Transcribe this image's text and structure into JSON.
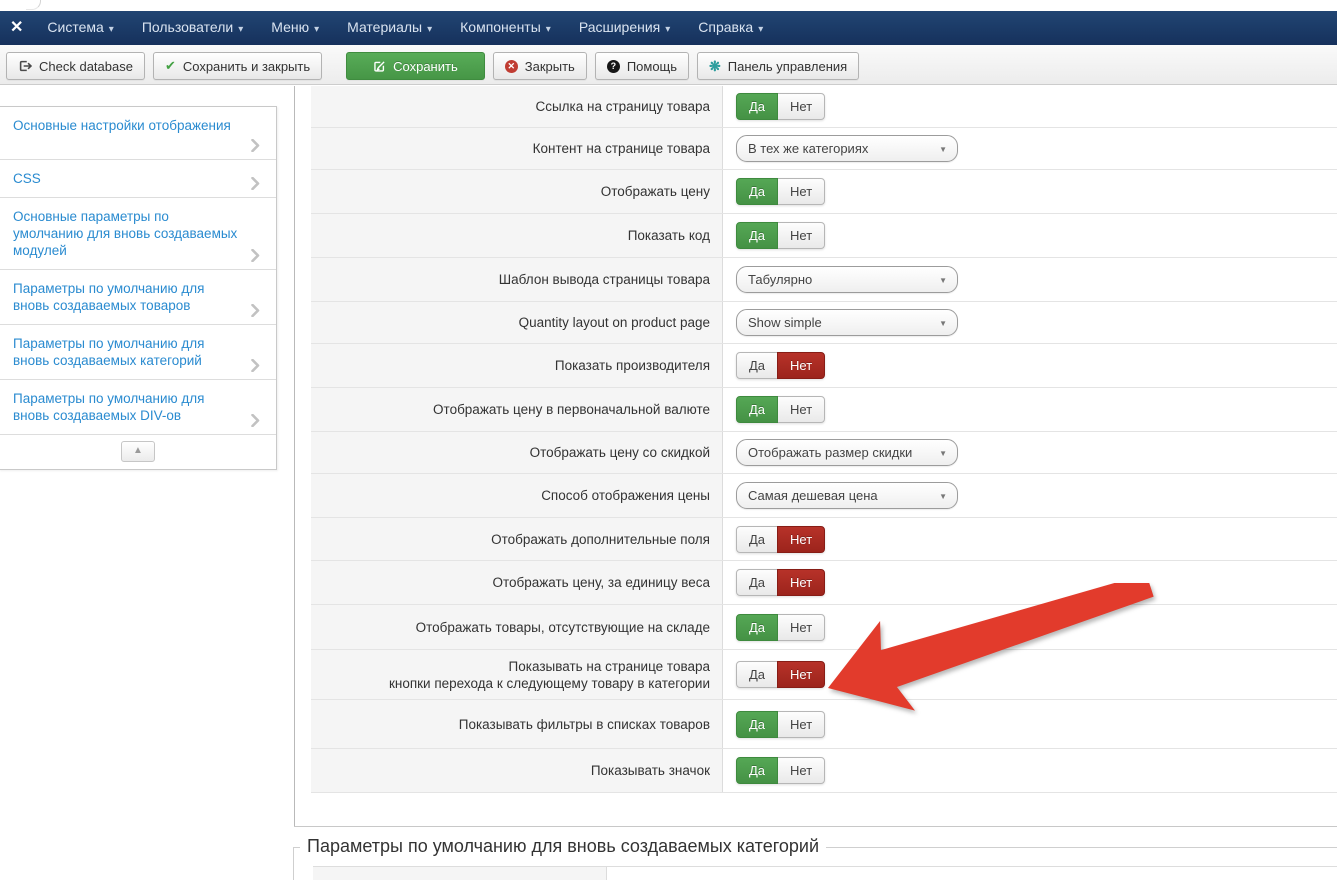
{
  "navbar": {
    "items": [
      {
        "slug": "system",
        "label": "Система"
      },
      {
        "slug": "users",
        "label": "Пользователи"
      },
      {
        "slug": "menus",
        "label": "Меню"
      },
      {
        "slug": "content",
        "label": "Материалы"
      },
      {
        "slug": "components",
        "label": "Компоненты"
      },
      {
        "slug": "extensions",
        "label": "Расширения"
      },
      {
        "slug": "help",
        "label": "Справка"
      }
    ]
  },
  "toolbar": {
    "buttons": [
      {
        "slug": "check-database",
        "label": "Check database",
        "icon": "database-export-icon",
        "variant": "default"
      },
      {
        "slug": "save-and-close",
        "label": "Сохранить и закрыть",
        "icon": "check-icon",
        "variant": "default"
      },
      {
        "slug": "save",
        "label": "Сохранить",
        "icon": "save-icon",
        "variant": "success"
      },
      {
        "slug": "close",
        "label": "Закрыть",
        "icon": "close-circle-icon",
        "variant": "default"
      },
      {
        "slug": "help",
        "label": "Помощь",
        "icon": "help-icon",
        "variant": "default"
      },
      {
        "slug": "control-panel",
        "label": "Панель управления",
        "icon": "dashboard-icon",
        "variant": "default"
      }
    ]
  },
  "sidebar": {
    "items": [
      {
        "slug": "display-settings",
        "label": "Основные настройки отображения"
      },
      {
        "slug": "css",
        "label": "CSS"
      },
      {
        "slug": "module-defaults",
        "label": "Основные параметры по\nумолчанию для вновь создаваемых\nмодулей"
      },
      {
        "slug": "product-defaults",
        "label": "Параметры по умолчанию для\nвновь создаваемых товаров"
      },
      {
        "slug": "category-defaults",
        "label": "Параметры по умолчанию для\nвновь создаваемых категорий"
      },
      {
        "slug": "div-defaults",
        "label": "Параметры по умолчанию для\nвновь создаваемых DIV-ов"
      }
    ],
    "scroll_top_icon": "scroll-top-icon"
  },
  "settings": {
    "toggle_yes_label": "Да",
    "toggle_no_label": "Нет",
    "rows": [
      {
        "label": "Ссылка на страницу товара",
        "type": "toggle",
        "value": "yes"
      },
      {
        "label": "Контент на странице товара",
        "type": "select",
        "value": "В тех же категориях"
      },
      {
        "label": "Отображать цену",
        "type": "toggle",
        "value": "yes"
      },
      {
        "label": "Показать код",
        "type": "toggle",
        "value": "yes"
      },
      {
        "label": "Шаблон вывода страницы товара",
        "type": "select",
        "value": "Табулярно"
      },
      {
        "label": "Quantity layout on product page",
        "type": "select",
        "value": "Show simple"
      },
      {
        "label": "Показать производителя",
        "type": "toggle",
        "value": "no"
      },
      {
        "label": "Отображать цену в первоначальной валюте",
        "type": "toggle",
        "value": "yes"
      },
      {
        "label": "Отображать цену со скидкой",
        "type": "select",
        "value": "Отображать размер скидки"
      },
      {
        "label": "Способ отображения цены",
        "type": "select",
        "value": "Самая дешевая цена"
      },
      {
        "label": "Отображать дополнительные поля",
        "type": "toggle",
        "value": "no"
      },
      {
        "label": "Отображать цену, за единицу веса",
        "type": "toggle",
        "value": "no"
      },
      {
        "label": "Отображать товары, отсутствующие на складе",
        "type": "toggle",
        "value": "yes"
      },
      {
        "label": "Показывать на странице товара\nкнопки перехода к следующему товару в категории",
        "type": "toggle",
        "value": "no"
      },
      {
        "label": "Показывать фильтры в списках товаров",
        "type": "toggle",
        "value": "yes"
      },
      {
        "label": "Показывать значок",
        "type": "toggle",
        "value": "yes"
      }
    ]
  },
  "section2": {
    "legend": "Параметры по умолчанию для вновь создаваемых категорий"
  },
  "colors": {
    "navbar": "#1b3a66",
    "toggle_on_green": "#4a9c4a",
    "toggle_on_red": "#b02b24",
    "link_blue": "#2a8bd0",
    "arrow_red": "#e23b2c"
  }
}
